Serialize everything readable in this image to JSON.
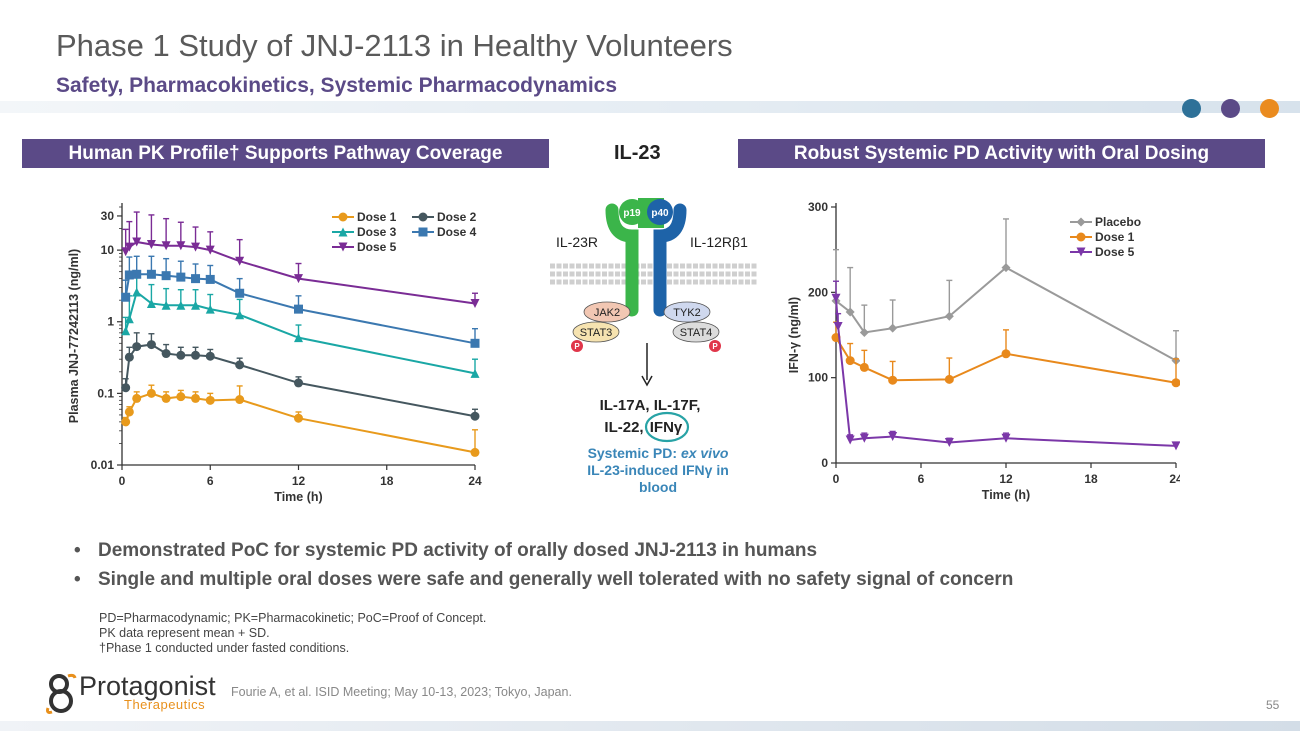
{
  "slide": {
    "title": "Phase 1 Study of JNJ-2113 in Healthy Volunteers",
    "subtitle": "Safety, Pharmacokinetics, Systemic Pharmacodynamics",
    "page_number": "55",
    "dots": [
      "#2e7198",
      "#5b4a87",
      "#ea8b1f"
    ]
  },
  "headers": {
    "left": "Human PK Profile† Supports Pathway Coverage",
    "right": "Robust Systemic PD Activity with Oral Dosing"
  },
  "pathway": {
    "title": "IL-23",
    "receptor_left": "IL-23R",
    "receptor_right": "IL-12Rβ1",
    "p19": "p19",
    "p40": "p40",
    "jak2": "JAK2",
    "tyk2": "TYK2",
    "stat3": "STAT3",
    "stat4": "STAT4",
    "phospho": "P",
    "cytokines_line1": "IL-17A, IL-17F,",
    "cytokines_line2a": "IL-22, ",
    "cytokines_line2b": "IFNγ",
    "pd_line1a": "Systemic PD: ",
    "pd_line1b": "ex vivo",
    "pd_line2": "IL-23-induced IFNγ in",
    "pd_line3": "blood"
  },
  "bullets": [
    "Demonstrated PoC for systemic PD activity of orally dosed JNJ-2113 in humans",
    "Single and multiple oral doses were safe and generally well tolerated with no safety signal of concern"
  ],
  "bullet_mark": "•",
  "footnotes": [
    "PD=Pharmacodynamic; PK=Pharmacokinetic; PoC=Proof of Concept.",
    "PK data represent mean + SD.",
    "†Phase 1 conducted under fasted conditions."
  ],
  "citation": "Fourie A, et al. ISID Meeting; May 10-13, 2023; Tokyo, Japan.",
  "logo": {
    "name": "Protagonist",
    "sub": "Therapeutics"
  },
  "chart_data": [
    {
      "type": "line",
      "scale": "log",
      "title": "Human PK Profile† Supports Pathway Coverage",
      "xlabel": "Time (h)",
      "ylabel": "Plasma JNJ-77242113 (ng/ml)",
      "xlim": [
        0,
        24
      ],
      "ylim": [
        0.01,
        40
      ],
      "xticks": [
        0,
        6,
        12,
        18,
        24
      ],
      "yticks": [
        0.01,
        0.1,
        1,
        10,
        30
      ],
      "ytick_labels": [
        "0.01",
        "0.1",
        "1",
        "10",
        "30"
      ],
      "legend": "top-right",
      "series": [
        {
          "name": "Dose 1",
          "color": "#e89a1c",
          "marker": "circle",
          "x": [
            0.25,
            0.5,
            1,
            2,
            3,
            4,
            5,
            6,
            8,
            12,
            24
          ],
          "y": [
            0.04,
            0.055,
            0.085,
            0.1,
            0.085,
            0.09,
            0.085,
            0.08,
            0.082,
            0.045,
            0.015
          ],
          "sd": [
            0.006,
            0.01,
            0.02,
            0.03,
            0.02,
            0.02,
            0.02,
            0.02,
            0.045,
            0.01,
            0.016
          ]
        },
        {
          "name": "Dose 2",
          "color": "#45575f",
          "marker": "circle",
          "x": [
            0.25,
            0.5,
            1,
            2,
            3,
            4,
            5,
            6,
            8,
            12,
            24
          ],
          "y": [
            0.12,
            0.32,
            0.45,
            0.48,
            0.36,
            0.34,
            0.34,
            0.33,
            0.25,
            0.14,
            0.048
          ],
          "sd": [
            0.04,
            0.12,
            0.25,
            0.2,
            0.12,
            0.1,
            0.1,
            0.08,
            0.06,
            0.03,
            0.012
          ]
        },
        {
          "name": "Dose 3",
          "color": "#1aa7a5",
          "marker": "triangle-up",
          "x": [
            0.25,
            0.5,
            1,
            2,
            3,
            4,
            5,
            6,
            8,
            12,
            24
          ],
          "y": [
            0.75,
            1.1,
            2.6,
            1.8,
            1.7,
            1.7,
            1.7,
            1.5,
            1.25,
            0.6,
            0.19
          ],
          "sd": [
            0.4,
            1.2,
            2.2,
            1.5,
            1.2,
            1.1,
            1.1,
            0.9,
            0.8,
            0.3,
            0.11
          ]
        },
        {
          "name": "Dose 4",
          "color": "#3b78b0",
          "marker": "square",
          "x": [
            0.25,
            0.5,
            1,
            2,
            3,
            4,
            5,
            6,
            8,
            12,
            24
          ],
          "y": [
            2.2,
            4.5,
            4.6,
            4.6,
            4.4,
            4.2,
            4.0,
            3.9,
            2.5,
            1.5,
            0.5
          ],
          "sd": [
            1.6,
            3.5,
            3.6,
            3.6,
            3.2,
            2.8,
            2.4,
            2.2,
            1.5,
            0.8,
            0.3
          ]
        },
        {
          "name": "Dose 5",
          "color": "#7a2c95",
          "marker": "triangle-down",
          "x": [
            0.25,
            0.5,
            1,
            2,
            3,
            4,
            5,
            6,
            8,
            12,
            24
          ],
          "y": [
            9.5,
            11,
            13,
            12,
            11.5,
            11.5,
            11,
            10,
            7,
            4,
            1.8
          ],
          "sd": [
            10,
            14,
            21,
            19,
            16,
            13,
            10,
            8,
            7,
            2.5,
            0.7
          ]
        }
      ]
    },
    {
      "type": "line",
      "scale": "linear",
      "title": "Robust Systemic PD Activity with Oral Dosing",
      "xlabel": "Time (h)",
      "ylabel": "IFN-γ (ng/ml)",
      "xlim": [
        0,
        24
      ],
      "ylim": [
        0,
        300
      ],
      "xticks": [
        0,
        6,
        12,
        18,
        24
      ],
      "yticks": [
        0,
        100,
        200,
        300
      ],
      "legend": "top-right",
      "series": [
        {
          "name": "Placebo",
          "color": "#9a9a9a",
          "marker": "diamond",
          "x": [
            0,
            1,
            2,
            4,
            8,
            12,
            24
          ],
          "y": [
            190,
            177,
            153,
            158,
            172,
            229,
            120
          ],
          "sd": [
            60,
            52,
            32,
            33,
            42,
            57,
            35
          ]
        },
        {
          "name": "Dose 1",
          "color": "#e8891c",
          "marker": "circle",
          "x": [
            0,
            1,
            2,
            4,
            8,
            12,
            24
          ],
          "y": [
            147,
            120,
            112,
            97,
            98,
            128,
            94
          ],
          "sd": [
            18,
            20,
            20,
            22,
            25,
            28,
            28
          ]
        },
        {
          "name": "Dose 5",
          "color": "#7b37a8",
          "marker": "triangle-down",
          "x": [
            0,
            0.15,
            1,
            2,
            4,
            8,
            12,
            24
          ],
          "y": [
            193,
            160,
            27,
            29,
            31,
            24,
            29,
            20
          ],
          "sd": [
            20,
            15,
            6,
            6,
            6,
            5,
            6,
            4
          ]
        }
      ]
    }
  ]
}
